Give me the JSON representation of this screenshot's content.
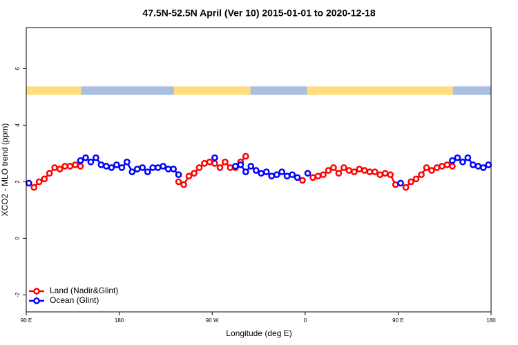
{
  "chart_data": {
    "type": "line",
    "title": "47.5N-52.5N April (Ver 10)   2015-01-01 to 2020-12-18",
    "x_label": "Longitude (deg E)",
    "y_label": "XCO2 - MLO trend (ppm)",
    "xlim": [
      90,
      540
    ],
    "ylim": [
      -2.6,
      7.45
    ],
    "xticks": [
      {
        "value": 90,
        "label": "90 E"
      },
      {
        "value": 180,
        "label": "180"
      },
      {
        "value": 270,
        "label": "90 W"
      },
      {
        "value": 360,
        "label": "0"
      },
      {
        "value": 450,
        "label": "90 E"
      },
      {
        "value": 540,
        "label": "180"
      }
    ],
    "yticks": [
      -2,
      0,
      2,
      4,
      6
    ],
    "legend": "bottom-left",
    "strip": {
      "ylim": [
        5.07,
        5.37
      ],
      "segments": [
        {
          "start": 90,
          "end": 143,
          "color": "#fedc7f"
        },
        {
          "start": 143,
          "end": 233,
          "color": "#a9bfdf"
        },
        {
          "start": 233,
          "end": 307,
          "color": "#fedc7f"
        },
        {
          "start": 307,
          "end": 362,
          "color": "#a9bfdf"
        },
        {
          "start": 362,
          "end": 503,
          "color": "#fedc7f"
        },
        {
          "start": 503,
          "end": 540,
          "color": "#a9bfdf"
        }
      ]
    },
    "x": [
      92.5,
      97.5,
      102.5,
      107.5,
      112.5,
      117.5,
      122.5,
      127.5,
      132.5,
      137.5,
      142.5,
      147.5,
      152.5,
      157.5,
      162.5,
      167.5,
      172.5,
      177.5,
      182.5,
      187.5,
      192.5,
      197.5,
      202.5,
      207.5,
      212.5,
      217.5,
      222.5,
      227.5,
      232.5,
      237.5,
      242.5,
      247.5,
      252.5,
      257.5,
      262.5,
      267.5,
      272.5,
      277.5,
      282.5,
      287.5,
      292.5,
      297.5,
      302.5,
      307.5,
      312.5,
      317.5,
      322.5,
      327.5,
      332.5,
      337.5,
      342.5,
      347.5,
      352.5,
      357.5,
      362.5,
      367.5,
      372.5,
      377.5,
      382.5,
      387.5,
      392.5,
      397.5,
      402.5,
      407.5,
      412.5,
      417.5,
      422.5,
      427.5,
      432.5,
      437.5,
      442.5,
      447.5,
      452.5,
      457.5,
      462.5,
      467.5,
      472.5,
      477.5,
      482.5,
      487.5,
      492.5,
      497.5,
      502.5,
      507.5,
      512.5,
      517.5,
      522.5,
      527.5,
      532.5,
      537.5
    ],
    "series": [
      {
        "name": "Land (Nadir&Glint)",
        "color": "#ff0000",
        "values": [
          null,
          1.8,
          2.0,
          2.1,
          2.3,
          2.5,
          2.45,
          2.55,
          2.55,
          2.6,
          2.55,
          null,
          null,
          null,
          null,
          null,
          null,
          null,
          null,
          null,
          null,
          null,
          null,
          null,
          null,
          null,
          null,
          null,
          null,
          2.0,
          1.9,
          2.2,
          2.3,
          2.5,
          2.65,
          2.7,
          2.65,
          2.5,
          2.7,
          2.5,
          2.5,
          2.7,
          2.9,
          null,
          null,
          null,
          null,
          null,
          null,
          null,
          null,
          null,
          null,
          2.05,
          null,
          2.15,
          2.2,
          2.25,
          2.4,
          2.5,
          2.3,
          2.5,
          2.4,
          2.35,
          2.45,
          2.4,
          2.35,
          2.35,
          2.25,
          2.3,
          2.25,
          1.9,
          null,
          1.8,
          2.0,
          2.1,
          2.25,
          2.5,
          2.4,
          2.5,
          2.55,
          2.6,
          2.55,
          null,
          null,
          null,
          null,
          null,
          null,
          null
        ]
      },
      {
        "name": "Ocean (Glint)",
        "color": "#0000ff",
        "values": [
          1.95,
          null,
          null,
          null,
          null,
          null,
          null,
          null,
          null,
          null,
          2.75,
          2.85,
          2.7,
          2.85,
          2.6,
          2.55,
          2.5,
          2.6,
          2.5,
          2.7,
          2.35,
          2.45,
          2.5,
          2.35,
          2.5,
          2.5,
          2.55,
          2.45,
          2.45,
          2.25,
          null,
          null,
          null,
          null,
          null,
          null,
          2.85,
          null,
          null,
          null,
          2.55,
          2.6,
          2.35,
          2.55,
          2.4,
          2.3,
          2.35,
          2.2,
          2.25,
          2.35,
          2.2,
          2.25,
          2.15,
          null,
          2.3,
          null,
          null,
          null,
          null,
          null,
          null,
          null,
          null,
          null,
          null,
          null,
          null,
          null,
          null,
          null,
          null,
          null,
          1.95,
          null,
          null,
          null,
          null,
          null,
          null,
          null,
          null,
          null,
          2.75,
          2.85,
          2.7,
          2.85,
          2.6,
          2.55,
          2.5,
          2.6
        ]
      }
    ]
  }
}
